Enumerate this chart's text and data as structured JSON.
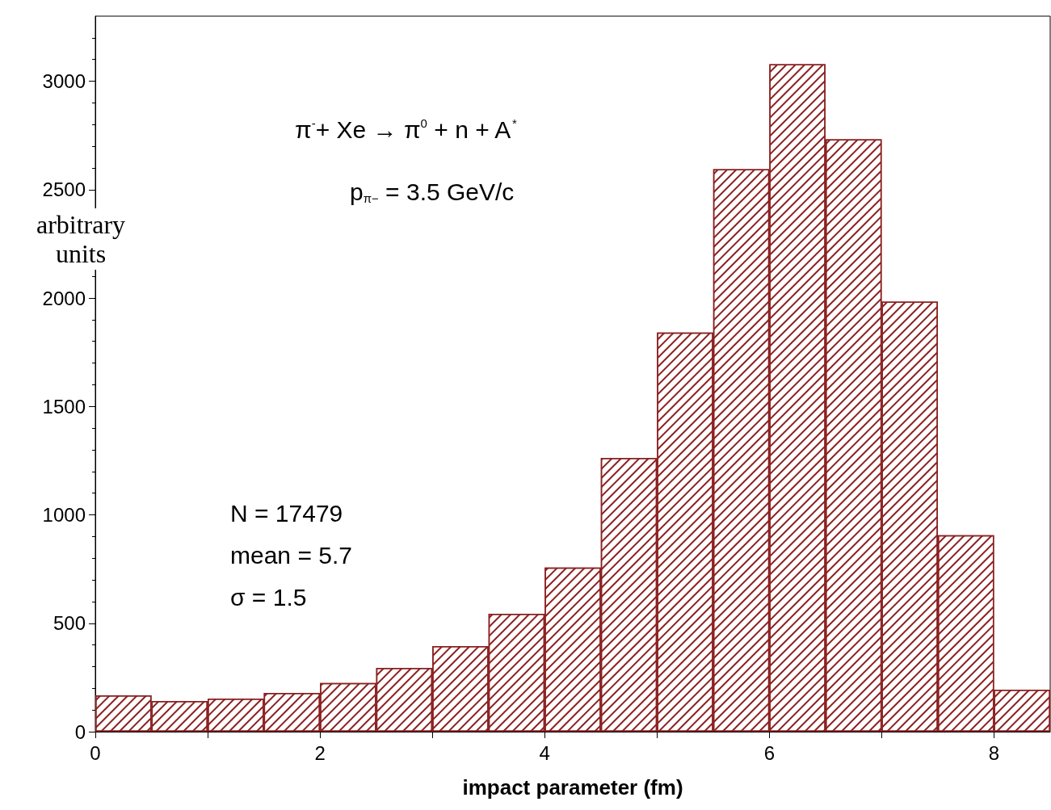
{
  "chart_data": {
    "type": "histogram",
    "xlabel": "impact parameter (fm)",
    "ylabel": "arbitrary\nunits",
    "bins": [
      0,
      0.5,
      1,
      1.5,
      2,
      2.5,
      3,
      3.5,
      4,
      4.5,
      5,
      5.5,
      6,
      6.5,
      7,
      7.5,
      8,
      8.5
    ],
    "values": [
      168,
      142,
      153,
      179,
      224,
      294,
      395,
      544,
      757,
      1263,
      1841,
      2594,
      3078,
      2732,
      1983,
      906,
      194
    ],
    "color": "#8b2020",
    "xlim": [
      0,
      8.5
    ],
    "xticks": [
      0,
      2,
      4,
      6,
      8
    ],
    "ylim": [
      0,
      3300
    ],
    "yticks": [
      0,
      500,
      1000,
      1500,
      2000,
      2500,
      3000
    ],
    "grid": false,
    "annotations": [
      "π$^{-}$+ Xe → π$^{0}$ + n + A$^{*}$",
      "p$_{π−}$ = 3.5 GeV/c",
      "N = 17479",
      "mean = 5.7",
      "σ = 1.5"
    ]
  }
}
